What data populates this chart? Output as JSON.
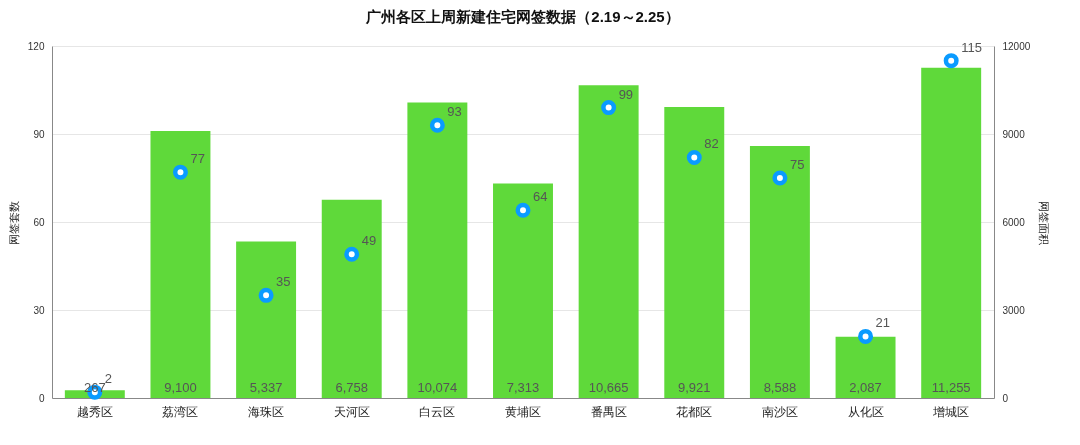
{
  "chart_data": {
    "type": "bar",
    "title": "广州各区上周新建住宅网签数据（2.19～2.25）",
    "ylabel": "网签套数",
    "y2label": "网签面积",
    "categories": [
      "越秀区",
      "荔湾区",
      "海珠区",
      "天河区",
      "白云区",
      "黄埔区",
      "番禺区",
      "花都区",
      "南沙区",
      "从化区",
      "增城区"
    ],
    "series": [
      {
        "axis": "y2",
        "color": "#5fd93a",
        "values": [
          267,
          9100,
          5337,
          6758,
          10074,
          7313,
          10665,
          9921,
          8588,
          2087,
          11255
        ],
        "value_labels": [
          "267",
          "9,100",
          "5,337",
          "6,758",
          "10,074",
          "7,313",
          "10,665",
          "9,921",
          "8,588",
          "2,087",
          "11,255"
        ]
      },
      {
        "type": "scatter",
        "color": "#0a9bff",
        "values": [
          2,
          77,
          35,
          49,
          93,
          64,
          99,
          82,
          75,
          21,
          115
        ],
        "value_labels": [
          "2",
          "77",
          "35",
          "49",
          "93",
          "64",
          "99",
          "82",
          "75",
          "21",
          "115"
        ]
      }
    ],
    "ylim": [
      0,
      120
    ],
    "yticks": [
      0,
      30,
      60,
      90,
      120
    ],
    "y2lim": [
      0,
      12000
    ],
    "y2ticks": [
      0,
      3000,
      6000,
      9000,
      12000
    ],
    "grid": "y",
    "marker": "circle"
  }
}
